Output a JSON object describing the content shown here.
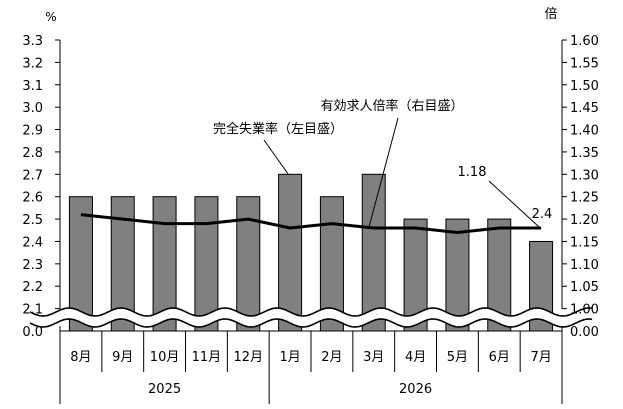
{
  "chart_data": {
    "type": "bar+line",
    "title": "",
    "left_axis": {
      "unit": "%",
      "break_lower_tick": "0.0",
      "ylim": [
        2.0,
        3.3
      ],
      "ticks": [
        "3.3",
        "3.2",
        "3.1",
        "3.0",
        "2.9",
        "2.8",
        "2.7",
        "2.6",
        "2.5",
        "2.4",
        "2.3",
        "2.2",
        "2.1"
      ]
    },
    "right_axis": {
      "unit": "倍",
      "break_lower_tick": "0.00",
      "ylim": [
        0.95,
        1.6
      ],
      "ticks": [
        "1.60",
        "1.55",
        "1.50",
        "1.45",
        "1.40",
        "1.35",
        "1.30",
        "1.25",
        "1.20",
        "1.15",
        "1.10",
        "1.05",
        "1.00"
      ]
    },
    "categories": [
      "8月",
      "9月",
      "10月",
      "11月",
      "12月",
      "1月",
      "2月",
      "3月",
      "4月",
      "5月",
      "6月",
      "7月"
    ],
    "year_groups": [
      {
        "label": "2025",
        "count": 5
      },
      {
        "label": "2026",
        "count": 7
      }
    ],
    "series": [
      {
        "name": "完全失業率（左目盛）",
        "type": "bar",
        "axis": "left",
        "color": "#808080",
        "values": [
          2.6,
          2.6,
          2.6,
          2.6,
          2.6,
          2.7,
          2.6,
          2.7,
          2.5,
          2.5,
          2.5,
          2.4
        ]
      },
      {
        "name": "有効求人倍率（右目盛）",
        "type": "line",
        "axis": "right",
        "color": "#000000",
        "values": [
          1.21,
          1.2,
          1.19,
          1.19,
          1.2,
          1.18,
          1.19,
          1.18,
          1.18,
          1.17,
          1.18,
          1.18
        ]
      }
    ],
    "data_labels": [
      {
        "text": "1.18",
        "series": 1,
        "index": 11
      },
      {
        "text": "2.4",
        "series": 0,
        "index": 11
      }
    ],
    "grid": false,
    "axis_break": true
  }
}
